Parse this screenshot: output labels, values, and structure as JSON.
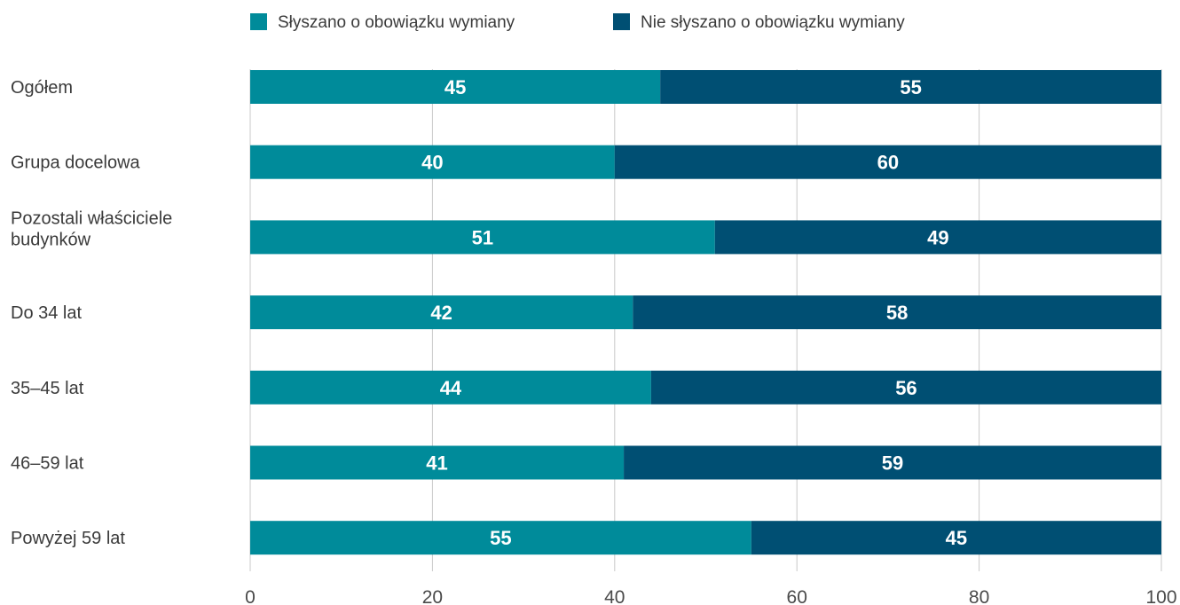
{
  "colors": {
    "series1": "#008b9a",
    "series2": "#004f73",
    "grid": "#c8c8c8",
    "label_text": "#3a3a3a"
  },
  "chart_data": {
    "type": "bar",
    "orientation": "horizontal",
    "stacked": true,
    "title": "",
    "xlabel": "",
    "ylabel": "",
    "xlim": [
      0,
      100
    ],
    "x_ticks": [
      0,
      20,
      40,
      60,
      80,
      100
    ],
    "grid": true,
    "legend_position": "top",
    "categories": [
      [
        "Ogółem"
      ],
      [
        "Grupa docelowa"
      ],
      [
        "Pozostali właściciele",
        "budynków"
      ],
      [
        "Do 34 lat"
      ],
      [
        "35–45 lat"
      ],
      [
        "46–59 lat"
      ],
      [
        "Powyżej 59 lat"
      ]
    ],
    "series": [
      {
        "name": "Słyszano o obowiązku wymiany",
        "color": "#008b9a",
        "values": [
          45,
          40,
          51,
          42,
          44,
          41,
          55
        ]
      },
      {
        "name": "Nie słyszano o obowiązku wymiany",
        "color": "#004f73",
        "values": [
          55,
          60,
          49,
          58,
          56,
          59,
          45
        ]
      }
    ]
  }
}
